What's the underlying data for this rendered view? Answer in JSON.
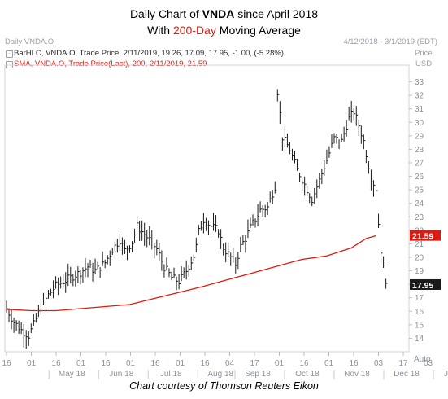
{
  "title": {
    "prefix": "Daily Chart of ",
    "ticker": "VNDA",
    "suffix": " since April 2018",
    "line2_prefix": "With ",
    "line2_highlight": "200-Day",
    "line2_suffix": " Moving Average"
  },
  "header": {
    "left": "Daily VNDA.O",
    "range": "4/12/2018 - 3/1/2019 (EDT)",
    "price_label": "Price",
    "currency": "USD"
  },
  "legend": {
    "bars": "BarHLC, VNDA.O, Trade Price, 2/11/2019, 19.26, 17.09, 17.95, -1.00, (-5.28%),",
    "sma": "SMA, VNDA.O, Trade Price(Last), 200, 2/11/2019, 21.59"
  },
  "credit": "Chart courtesy of Thomson Reuters Eikon",
  "colors": {
    "bars": "#1a1a1a",
    "sma": "#e0180e",
    "axis_text": "#8a9099",
    "grid": "#e6e8ec"
  },
  "chart_data": {
    "type": "line",
    "ylim": [
      13,
      34
    ],
    "yticks": [
      14,
      15,
      16,
      17,
      18,
      19,
      20,
      21,
      22,
      23,
      24,
      25,
      26,
      27,
      28,
      29,
      30,
      31,
      32,
      33
    ],
    "y_scale_label": "Auto",
    "x_day_labels": [
      "16",
      "01",
      "16",
      "01",
      "16",
      "01",
      "16",
      "01",
      "16",
      "04",
      "17",
      "01",
      "16",
      "01",
      "16",
      "03",
      "17",
      "03",
      "16",
      "01",
      "16",
      "01",
      "19"
    ],
    "x_month_labels": [
      "May 18",
      "Jun 18",
      "Jul 18",
      "Aug 18",
      "Sep 18",
      "Oct 18",
      "Nov 18",
      "Dec 18",
      "Jan 19",
      "Feb 19"
    ],
    "price_series": {
      "name": "VNDA.O Trade Price",
      "kind": "bar-hlc",
      "points": [
        [
          0,
          16.2
        ],
        [
          0.3,
          15.2
        ],
        [
          0.6,
          14.6
        ],
        [
          0.9,
          14.2
        ],
        [
          1.1,
          15.0
        ],
        [
          1.4,
          16.3
        ],
        [
          1.7,
          17.2
        ],
        [
          2.0,
          17.9
        ],
        [
          2.3,
          18.2
        ],
        [
          2.6,
          18.5
        ],
        [
          3.0,
          18.9
        ],
        [
          3.3,
          19.3
        ],
        [
          3.6,
          19.0
        ],
        [
          4.0,
          19.6
        ],
        [
          4.3,
          20.6
        ],
        [
          4.6,
          21.3
        ],
        [
          4.8,
          20.5
        ],
        [
          5.1,
          21.1
        ],
        [
          5.3,
          22.3
        ],
        [
          5.5,
          21.9
        ],
        [
          5.8,
          21.3
        ],
        [
          6.1,
          20.6
        ],
        [
          6.4,
          19.3
        ],
        [
          6.7,
          18.5
        ],
        [
          7.0,
          18.2
        ],
        [
          7.3,
          19.0
        ],
        [
          7.6,
          20.1
        ],
        [
          7.7,
          20.8
        ],
        [
          7.8,
          21.9
        ],
        [
          8.0,
          22.8
        ],
        [
          8.3,
          22.3
        ],
        [
          8.6,
          22.0
        ],
        [
          8.8,
          20.7
        ],
        [
          9.1,
          20.0
        ],
        [
          9.3,
          19.5
        ],
        [
          9.5,
          20.8
        ],
        [
          9.7,
          21.4
        ],
        [
          9.9,
          22.2
        ],
        [
          10.1,
          22.8
        ],
        [
          10.3,
          23.5
        ],
        [
          10.6,
          23.7
        ],
        [
          10.9,
          25.3
        ],
        [
          11.0,
          32.3
        ],
        [
          11.2,
          28.9
        ],
        [
          11.5,
          28.0
        ],
        [
          11.8,
          26.5
        ],
        [
          12.1,
          25.4
        ],
        [
          12.4,
          24.3
        ],
        [
          12.7,
          25.7
        ],
        [
          13.0,
          27.2
        ],
        [
          13.3,
          28.8
        ],
        [
          13.6,
          28.6
        ],
        [
          13.9,
          30.3
        ],
        [
          14.1,
          30.8
        ],
        [
          14.3,
          29.8
        ],
        [
          14.5,
          28.6
        ],
        [
          14.8,
          25.9
        ],
        [
          15.0,
          25.1
        ],
        [
          15.15,
          21.2
        ],
        [
          15.3,
          19.2
        ],
        [
          15.45,
          17.95
        ]
      ]
    },
    "sma_series": {
      "name": "SMA 200",
      "points": [
        [
          0,
          16.15
        ],
        [
          1,
          16.05
        ],
        [
          2,
          16.05
        ],
        [
          3,
          16.2
        ],
        [
          4,
          16.35
        ],
        [
          5,
          16.5
        ],
        [
          6,
          16.95
        ],
        [
          7,
          17.4
        ],
        [
          8,
          17.85
        ],
        [
          9,
          18.35
        ],
        [
          10,
          18.85
        ],
        [
          11,
          19.35
        ],
        [
          12,
          19.85
        ],
        [
          13,
          20.1
        ],
        [
          14,
          20.7
        ],
        [
          14.6,
          21.4
        ],
        [
          15.0,
          21.6
        ]
      ]
    },
    "last_price_label": "17.95",
    "last_sma_label": "21.59"
  }
}
